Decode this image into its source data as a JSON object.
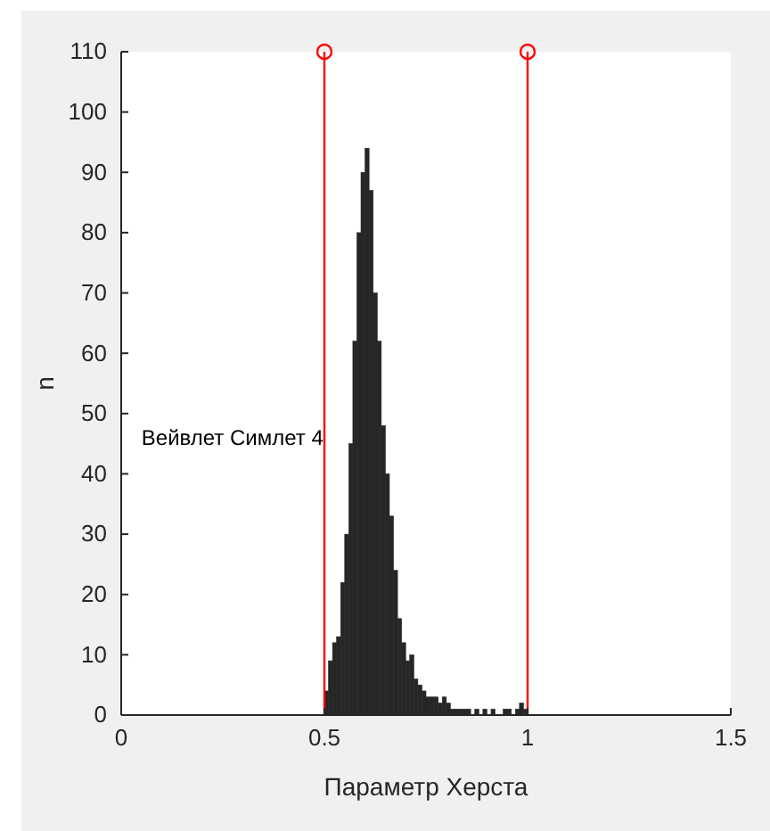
{
  "chart_data": {
    "type": "histogram",
    "xlabel": "Параметр Херста",
    "ylabel": "n",
    "annotations": [
      "Вейвлет Симлет 4"
    ],
    "bins": [
      0.5,
      0.51,
      0.52,
      0.53,
      0.54,
      0.55,
      0.56,
      0.57,
      0.58,
      0.59,
      0.6,
      0.61,
      0.62,
      0.63,
      0.64,
      0.65,
      0.66,
      0.67,
      0.68,
      0.69,
      0.7,
      0.71,
      0.72,
      0.73,
      0.74,
      0.75,
      0.76,
      0.77,
      0.78,
      0.79,
      0.8,
      0.81,
      0.82,
      0.83,
      0.84,
      0.85,
      0.86,
      0.87,
      0.88,
      0.89,
      0.9,
      0.91,
      0.92,
      0.93,
      0.94,
      0.95,
      0.96,
      0.97,
      0.98,
      0.99,
      1.0
    ],
    "values": [
      4,
      9,
      12,
      13,
      22,
      30,
      45,
      62,
      80,
      90,
      94,
      87,
      70,
      62,
      48,
      40,
      33,
      24,
      16,
      12,
      9,
      10,
      6,
      5,
      4,
      3,
      3,
      3,
      2,
      3,
      2,
      1,
      1,
      1,
      1,
      1,
      0,
      1,
      0,
      1,
      0,
      1,
      0,
      0,
      1,
      1,
      0,
      1,
      2,
      1
    ],
    "color": "#262626",
    "xlim": [
      0,
      1.5
    ],
    "xticks": [
      0,
      {
        "value": 0.5,
        "label": "0.5"
      },
      1,
      {
        "value": 1.5,
        "label": "1.5"
      }
    ],
    "ylim": [
      0,
      110
    ],
    "yticks": [
      0,
      10,
      20,
      30,
      40,
      50,
      60,
      70,
      80,
      90,
      100,
      110
    ],
    "series": [
      {
        "type": "lollipop",
        "color": "#ff0000",
        "x": [
          0.5,
          1
        ],
        "values": [
          110,
          110
        ]
      }
    ],
    "marker": "circle"
  }
}
